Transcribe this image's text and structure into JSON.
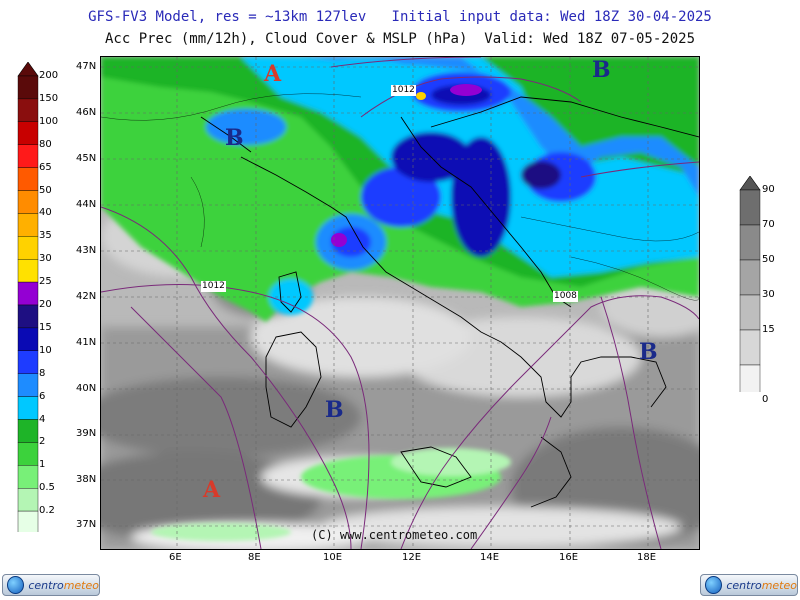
{
  "title": {
    "line1": "GFS-FV3 Model, res = ~13km 127lev   Initial input data: Wed 18Z 30-04-2025",
    "line2": "Acc Prec (mm/12h), Cloud Cover & MSLP (hPa)  Valid: Wed 18Z 07-05-2025"
  },
  "axes": {
    "lat_labels": [
      "47N",
      "46N",
      "45N",
      "44N",
      "43N",
      "42N",
      "41N",
      "40N",
      "39N",
      "38N",
      "37N"
    ],
    "lon_labels": [
      "6E",
      "8E",
      "10E",
      "12E",
      "14E",
      "16E",
      "18E"
    ]
  },
  "precip_scale": {
    "labels": [
      "200",
      "150",
      "100",
      "80",
      "65",
      "50",
      "40",
      "35",
      "30",
      "25",
      "20",
      "15",
      "10",
      "8",
      "6",
      "4",
      "2",
      "1",
      "0.5",
      "0.2"
    ],
    "colors": [
      "#5a0a0a",
      "#8a0e0e",
      "#c80000",
      "#ff1a1a",
      "#ff5a00",
      "#ff8c00",
      "#ffb000",
      "#ffd200",
      "#ffe100",
      "#9400d3",
      "#1e0f82",
      "#0a0ab4",
      "#1e3cff",
      "#1e8cff",
      "#00c8ff",
      "#1eb428",
      "#3cd23c",
      "#78f078",
      "#b4f5b4",
      "#e6ffe6"
    ]
  },
  "cloud_scale": {
    "labels": [
      "90",
      "70",
      "50",
      "30",
      "15",
      "0"
    ],
    "colors": [
      "#6e6e6e",
      "#8a8a8a",
      "#a5a5a5",
      "#bebebe",
      "#d7d7d7",
      "#f2f2f2"
    ]
  },
  "pressure_centers": [
    {
      "letter": "A",
      "type": "high"
    },
    {
      "letter": "B",
      "type": "low"
    },
    {
      "letter": "B",
      "type": "low"
    },
    {
      "letter": "B",
      "type": "low"
    },
    {
      "letter": "B",
      "type": "low"
    },
    {
      "letter": "A",
      "type": "high"
    }
  ],
  "isobar_labels": [
    "1012",
    "1012",
    "1008"
  ],
  "copyright": "(C) www.centrometeo.com",
  "logos": {
    "left": "centro",
    "left_accent": "meteo",
    "right": "centro",
    "right_accent": "meteo"
  },
  "colors": {
    "high": "#d83a2a",
    "low": "#1a2a8a",
    "isobar": "#7a2a7a"
  }
}
